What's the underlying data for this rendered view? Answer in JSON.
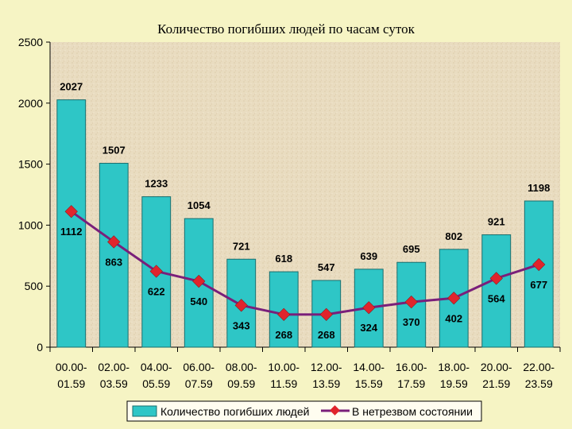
{
  "colors": {
    "background": "#f6f4c4",
    "plot_area": "#e9dcc0",
    "bar_fill": "#2ec6c6",
    "bar_stroke": "#1a6e6e",
    "line": "#7a1f7a",
    "marker": "#e0242c"
  },
  "chart_data": {
    "type": "bar",
    "title": "Количество погибших людей по часам суток",
    "categories": [
      [
        "00.00-",
        "01.59"
      ],
      [
        "02.00-",
        "03.59"
      ],
      [
        "04.00-",
        "05.59"
      ],
      [
        "06.00-",
        "07.59"
      ],
      [
        "08.00-",
        "09.59"
      ],
      [
        "10.00-",
        "11.59"
      ],
      [
        "12.00-",
        "13.59"
      ],
      [
        "14.00-",
        "15.59"
      ],
      [
        "16.00-",
        "17.59"
      ],
      [
        "18.00-",
        "19.59"
      ],
      [
        "20.00-",
        "21.59"
      ],
      [
        "22.00-",
        "23.59"
      ]
    ],
    "series": [
      {
        "name": "Количество погибших людей",
        "kind": "bar",
        "values": [
          2027,
          1507,
          1233,
          1054,
          721,
          618,
          547,
          639,
          695,
          802,
          921,
          1198
        ]
      },
      {
        "name": "В нетрезвом состоянии",
        "kind": "line",
        "values": [
          1112,
          863,
          622,
          540,
          343,
          268,
          268,
          324,
          370,
          402,
          564,
          677
        ]
      }
    ],
    "ylim": [
      0,
      2500
    ],
    "yticks": [
      0,
      500,
      1000,
      1500,
      2000,
      2500
    ],
    "grid": false,
    "legend_position": "bottom"
  }
}
